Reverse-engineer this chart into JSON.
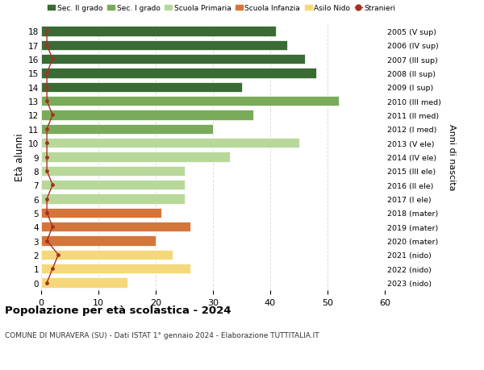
{
  "ages": [
    18,
    17,
    16,
    15,
    14,
    13,
    12,
    11,
    10,
    9,
    8,
    7,
    6,
    5,
    4,
    3,
    2,
    1,
    0
  ],
  "values": [
    41,
    43,
    46,
    48,
    35,
    52,
    37,
    30,
    45,
    33,
    25,
    25,
    25,
    21,
    26,
    20,
    23,
    26,
    15
  ],
  "stranieri": [
    1,
    1,
    2,
    1,
    1,
    1,
    2,
    1,
    1,
    1,
    1,
    2,
    1,
    1,
    2,
    1,
    3,
    2,
    1
  ],
  "right_labels": [
    "2005 (V sup)",
    "2006 (IV sup)",
    "2007 (III sup)",
    "2008 (II sup)",
    "2009 (I sup)",
    "2010 (III med)",
    "2011 (II med)",
    "2012 (I med)",
    "2013 (V ele)",
    "2014 (IV ele)",
    "2015 (III ele)",
    "2016 (II ele)",
    "2017 (I ele)",
    "2018 (mater)",
    "2019 (mater)",
    "2020 (mater)",
    "2021 (nido)",
    "2022 (nido)",
    "2023 (nido)"
  ],
  "colors": {
    "sec2": "#3a6b35",
    "sec1": "#7aab5a",
    "primaria": "#b8d89a",
    "infanzia": "#d4763b",
    "nido": "#f5d87a"
  },
  "bar_colors": [
    "#3a6b35",
    "#3a6b35",
    "#3a6b35",
    "#3a6b35",
    "#3a6b35",
    "#7aab5a",
    "#7aab5a",
    "#7aab5a",
    "#b8d89a",
    "#b8d89a",
    "#b8d89a",
    "#b8d89a",
    "#b8d89a",
    "#d4763b",
    "#d4763b",
    "#d4763b",
    "#f5d87a",
    "#f5d87a",
    "#f5d87a"
  ],
  "title": "Popolazione per età scolastica - 2024",
  "subtitle": "COMUNE DI MURAVERA (SU) - Dati ISTAT 1° gennaio 2024 - Elaborazione TUTTITALIA.IT",
  "ylabel": "Età alunni",
  "right_ylabel": "Anni di nascita",
  "xlim": [
    0,
    60
  ],
  "xticks": [
    0,
    10,
    20,
    30,
    40,
    50,
    60
  ],
  "background_color": "#ffffff",
  "plot_bg_color": "#ffffff",
  "stranieri_color": "#a63020",
  "legend_labels": [
    "Sec. II grado",
    "Sec. I grado",
    "Scuola Primaria",
    "Scuola Infanzia",
    "Asilo Nido",
    "Stranieri"
  ],
  "grid_color": "#dddddd",
  "bar_height": 0.72,
  "bar_edgecolor": "white",
  "bar_linewidth": 0.5
}
